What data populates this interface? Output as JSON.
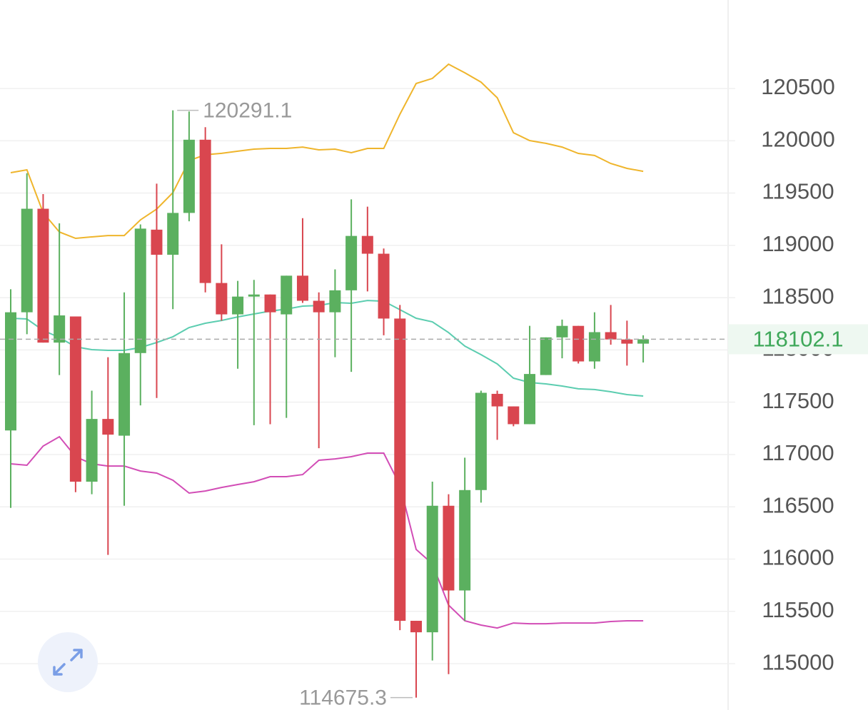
{
  "chart_data": {
    "type": "candlestick",
    "up_color": "#5bb05f",
    "down_color": "#d9464f",
    "ylim": [
      114557,
      121346
    ],
    "yticks": [
      115000,
      115500,
      116000,
      116500,
      117000,
      117500,
      118000,
      118500,
      119000,
      119500,
      120000,
      120500
    ],
    "grid": true,
    "ohlc": [
      [
        117230,
        118580,
        116490,
        118360
      ],
      [
        118360,
        119690,
        118150,
        119350
      ],
      [
        119350,
        119490,
        118070,
        118070
      ],
      [
        118070,
        119210,
        117760,
        118330
      ],
      [
        118320,
        118320,
        116640,
        116740
      ],
      [
        116740,
        117610,
        116620,
        117340
      ],
      [
        117340,
        117930,
        116040,
        117190
      ],
      [
        117180,
        118550,
        116510,
        117970
      ],
      [
        117970,
        119200,
        117470,
        119160
      ],
      [
        119150,
        119590,
        117540,
        118910
      ],
      [
        118910,
        120291.1,
        118390,
        119310
      ],
      [
        119310,
        120280,
        119230,
        120010
      ],
      [
        120010,
        120130,
        118550,
        118640
      ],
      [
        118640,
        119010,
        118280,
        118340
      ],
      [
        118340,
        118660,
        117820,
        118510
      ],
      [
        118510,
        118670,
        117280,
        118530
      ],
      [
        118530,
        118530,
        117290,
        118360
      ],
      [
        118340,
        118710,
        117350,
        118710
      ],
      [
        118710,
        119260,
        118450,
        118470
      ],
      [
        118470,
        118550,
        117060,
        118360
      ],
      [
        118360,
        118770,
        117930,
        118570
      ],
      [
        118570,
        119440,
        117790,
        119090
      ],
      [
        119090,
        119370,
        118560,
        118920
      ],
      [
        118920,
        118970,
        118140,
        118300
      ],
      [
        118300,
        118430,
        115320,
        115410
      ],
      [
        115410,
        115410,
        114675.3,
        115300
      ],
      [
        115300,
        116740,
        115030,
        116510
      ],
      [
        116510,
        116620,
        114900,
        115700
      ],
      [
        115700,
        116970,
        115410,
        116660
      ],
      [
        116660,
        117610,
        116540,
        117590
      ],
      [
        117580,
        117610,
        117140,
        117460
      ],
      [
        117460,
        117460,
        117270,
        117290
      ],
      [
        117290,
        118230,
        117290,
        117770
      ],
      [
        117760,
        118120,
        117760,
        118120
      ],
      [
        118120,
        118290,
        117920,
        118230
      ],
      [
        118230,
        118230,
        117870,
        117890
      ],
      [
        117890,
        118360,
        117820,
        118170
      ],
      [
        118170,
        118430,
        118050,
        118100
      ],
      [
        118100,
        118280,
        117850,
        118060
      ],
      [
        118060,
        118140,
        117880,
        118102.1
      ]
    ],
    "bands": [
      {
        "color": "#efb52c",
        "values": [
          119695,
          119722,
          119313,
          119128,
          119067,
          119081,
          119094,
          119094,
          119244,
          119347,
          119504,
          119811,
          119866,
          119880,
          119900,
          119920,
          119927,
          119927,
          119940,
          119913,
          119920,
          119886,
          119927,
          119927,
          120254,
          120548,
          120596,
          120732,
          120650,
          120561,
          120411,
          120077,
          120002,
          119975,
          119940,
          119879,
          119859,
          119783,
          119736,
          119708
        ]
      },
      {
        "color": "#5ccdb0",
        "values": [
          118303,
          118296,
          118187,
          118119,
          118030,
          118003,
          117996,
          117996,
          118023,
          118071,
          118126,
          118214,
          118255,
          118282,
          118316,
          118344,
          118371,
          118391,
          118419,
          118425,
          118453,
          118446,
          118473,
          118466,
          118385,
          118303,
          118269,
          118166,
          118037,
          117955,
          117866,
          117730,
          117689,
          117675,
          117655,
          117628,
          117621,
          117600,
          117573,
          117559
        ]
      },
      {
        "color": "#d24db6",
        "values": [
          116911,
          116897,
          117081,
          117170,
          116979,
          116911,
          116890,
          116890,
          116842,
          116822,
          116754,
          116631,
          116651,
          116685,
          116713,
          116740,
          116788,
          116788,
          116808,
          116945,
          116958,
          116979,
          117013,
          117013,
          116706,
          116092,
          115955,
          115560,
          115410,
          115369,
          115341,
          115389,
          115382,
          115382,
          115389,
          115389,
          115389,
          115403,
          115410,
          115410
        ]
      }
    ]
  }
}
